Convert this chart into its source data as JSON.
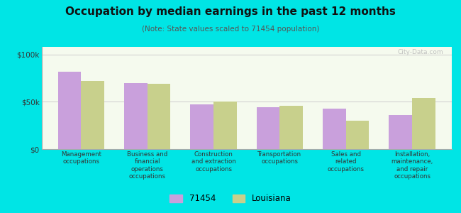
{
  "title": "Occupation by median earnings in the past 12 months",
  "subtitle": "(Note: State values scaled to 71454 population)",
  "categories": [
    "Management\noccupations",
    "Business and\nfinancial\noperations\noccupations",
    "Construction\nand extraction\noccupations",
    "Transportation\noccupations",
    "Sales and\nrelated\noccupations",
    "Installation,\nmaintenance,\nand repair\noccupations"
  ],
  "values_71454": [
    82000,
    70000,
    47000,
    44000,
    43000,
    36000
  ],
  "values_louisiana": [
    72000,
    69000,
    50000,
    46000,
    30000,
    54000
  ],
  "color_71454": "#c9a0dc",
  "color_louisiana": "#c8d08c",
  "background_color": "#00e5e5",
  "plot_bg": "#f5faee",
  "ylabel_ticks": [
    "$0",
    "$50k",
    "$100k"
  ],
  "yticks": [
    0,
    50000,
    100000
  ],
  "ylim": [
    0,
    108000
  ],
  "legend_label_1": "71454",
  "legend_label_2": "Louisiana",
  "bar_width": 0.35
}
